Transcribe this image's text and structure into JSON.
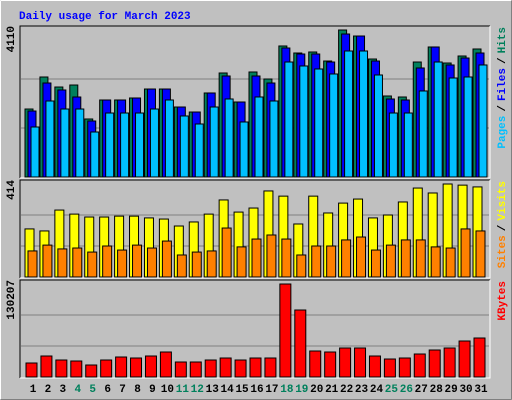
{
  "chart_data": [
    {
      "type": "bar",
      "title": "Daily usage for March 2023",
      "ylim": [
        0,
        4110
      ],
      "yticks": [
        4110
      ],
      "grid": true,
      "legend_separator": "/",
      "series": [
        {
          "name": "Hits",
          "color": "#00805c",
          "values": [
            1901,
            2796,
            2516,
            2572,
            1622,
            2153,
            2153,
            2209,
            2460,
            2460,
            1957,
            1817,
            2349,
            2908,
            2097,
            2936,
            2740,
            3663,
            3467,
            3495,
            3243,
            4110,
            3942,
            3299,
            2265,
            2237,
            3215,
            3635,
            3187,
            3383,
            3579
          ]
        },
        {
          "name": "Files",
          "color": "#0000ff",
          "values": [
            1845,
            2628,
            2433,
            2237,
            1566,
            2153,
            2153,
            2209,
            2460,
            2460,
            1957,
            1817,
            2349,
            2824,
            2097,
            2824,
            2628,
            3607,
            3439,
            3439,
            3215,
            3998,
            3942,
            3243,
            2181,
            2153,
            3048,
            3635,
            3132,
            3327,
            3467
          ]
        },
        {
          "name": "Pages",
          "color": "#00c0ff",
          "values": [
            1398,
            2125,
            1901,
            1901,
            1258,
            1789,
            1789,
            1789,
            1901,
            2153,
            1706,
            1482,
            1957,
            2181,
            1538,
            2237,
            2125,
            3215,
            3104,
            3020,
            2880,
            3523,
            3523,
            2852,
            1789,
            1789,
            2405,
            3215,
            2768,
            2796,
            3132
          ]
        }
      ]
    },
    {
      "type": "bar",
      "ylim": [
        0,
        414
      ],
      "yticks": [
        414
      ],
      "grid": true,
      "legend_separator": "/",
      "series": [
        {
          "name": "Visits",
          "color": "#ffff00",
          "values": [
            214,
            205,
            298,
            280,
            267,
            267,
            271,
            271,
            263,
            258,
            227,
            245,
            280,
            343,
            289,
            307,
            383,
            360,
            236,
            360,
            285,
            329,
            347,
            263,
            276,
            334,
            396,
            374,
            414,
            409,
            401
          ]
        },
        {
          "name": "Sites",
          "color": "#ff8000",
          "values": [
            116,
            142,
            125,
            129,
            111,
            138,
            120,
            142,
            129,
            160,
            98,
            111,
            116,
            218,
            134,
            169,
            187,
            169,
            98,
            138,
            138,
            165,
            178,
            120,
            142,
            165,
            165,
            134,
            129,
            214,
            205
          ]
        }
      ]
    },
    {
      "type": "bar",
      "ylim": [
        0,
        130207
      ],
      "yticks": [
        130207
      ],
      "grid": true,
      "categories": [
        "1",
        "2",
        "3",
        "4",
        "5",
        "6",
        "7",
        "8",
        "9",
        "10",
        "11",
        "12",
        "13",
        "14",
        "15",
        "16",
        "17",
        "18",
        "19",
        "20",
        "21",
        "22",
        "23",
        "24",
        "25",
        "26",
        "27",
        "28",
        "29",
        "30",
        "31"
      ],
      "category_colors": [
        "#000000",
        "#000000",
        "#000000",
        "#00805c",
        "#00805c",
        "#000000",
        "#000000",
        "#000000",
        "#000000",
        "#000000",
        "#00805c",
        "#00805c",
        "#000000",
        "#000000",
        "#000000",
        "#000000",
        "#000000",
        "#00805c",
        "#00805c",
        "#000000",
        "#000000",
        "#000000",
        "#000000",
        "#000000",
        "#00805c",
        "#00805c",
        "#000000",
        "#000000",
        "#000000",
        "#000000",
        "#000000"
      ],
      "series": [
        {
          "name": "KBytes",
          "color": "#ff0000",
          "values": [
            19600,
            29400,
            23800,
            22400,
            16800,
            23800,
            28000,
            26600,
            29400,
            35000,
            21000,
            21000,
            23800,
            26600,
            23800,
            26600,
            26600,
            130207,
            93800,
            36400,
            35000,
            40600,
            40600,
            29400,
            25200,
            26600,
            32200,
            37800,
            40600,
            50400,
            54600
          ]
        }
      ]
    }
  ]
}
